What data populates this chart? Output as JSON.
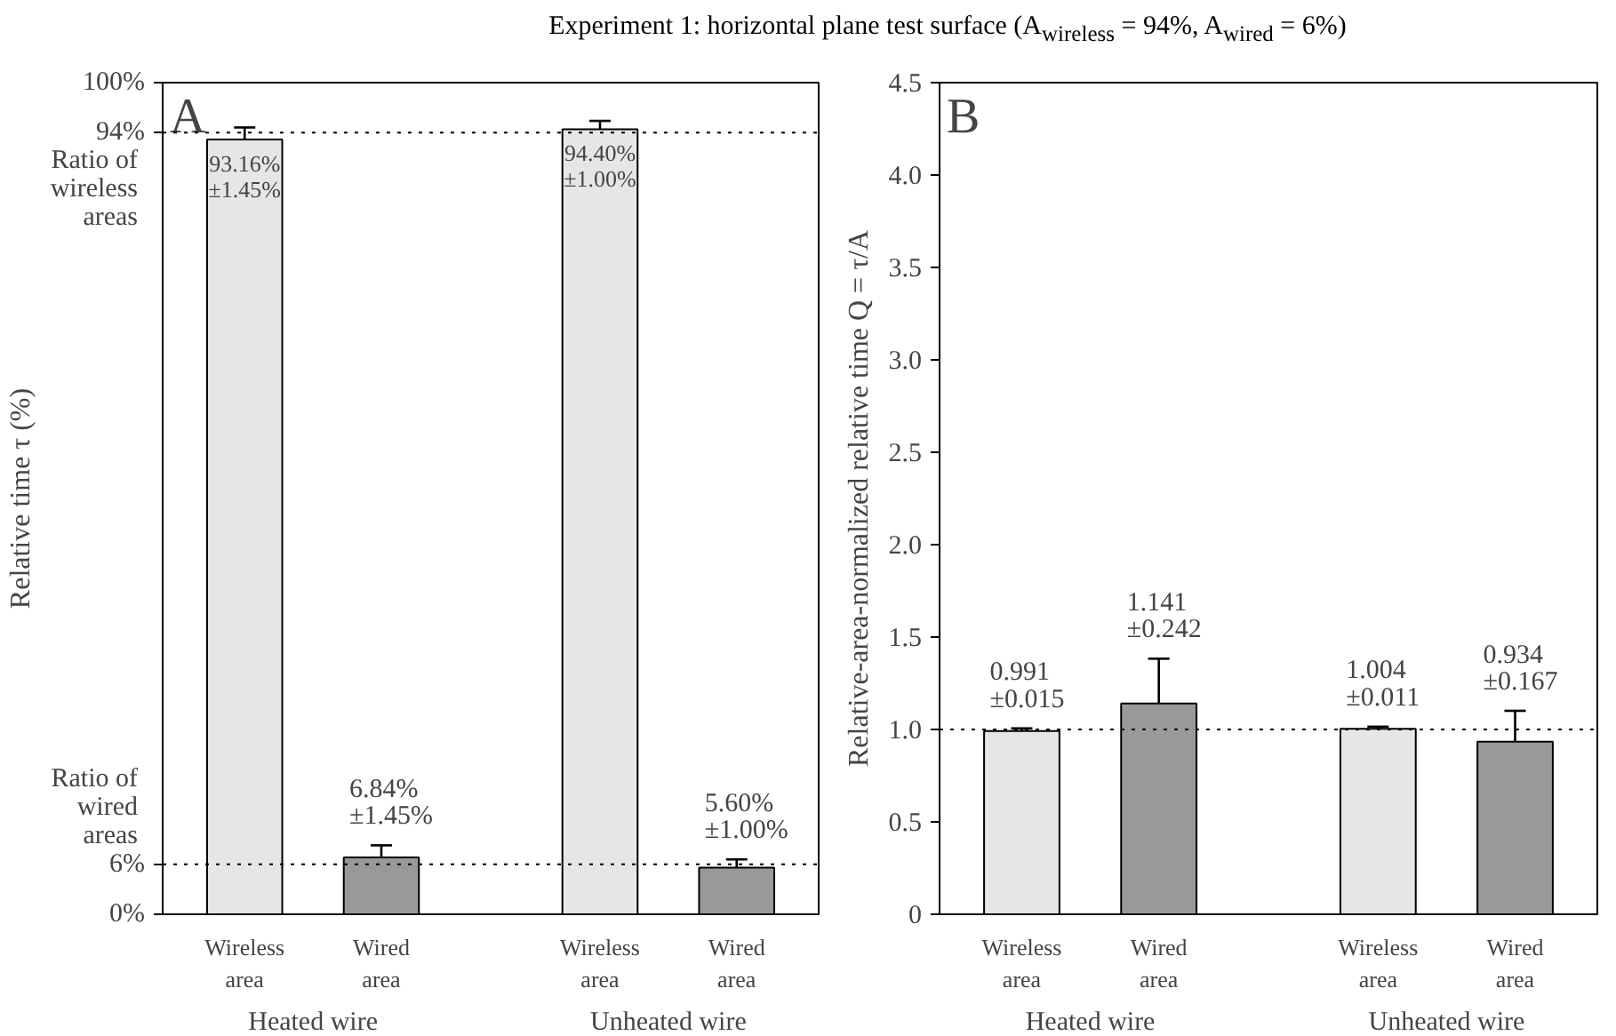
{
  "chart_data": [
    {
      "type": "bar",
      "title": "Experiment 1: horizontal plane test surface (A$_{wireless}$ = 94%, A$_{wired}$ = 6%)",
      "ylabel": "Relative time τ (%)",
      "categories": [
        "Wireless area",
        "Wired area",
        "Wireless area",
        "Wired area"
      ],
      "values": [
        93.16,
        6.84,
        94.4,
        5.6
      ],
      "errors": [
        1.45,
        1.45,
        1.0,
        1.0
      ],
      "colors": [
        "#e6e6e6",
        "#999999",
        "#e6e6e6",
        "#999999"
      ],
      "value_labels": [
        "93.16%\n±1.45%",
        "6.84%\n±1.45%",
        "94.40%\n±1.00%",
        "5.60%\n±1.00%"
      ],
      "ylim": [
        0,
        100
      ],
      "yticks": [
        {
          "value": 0,
          "label": "0%"
        },
        {
          "value": 6,
          "label": "6%"
        },
        {
          "value": 94,
          "label": "94%"
        },
        {
          "value": 100,
          "label": "100%"
        }
      ],
      "ref_lines": [
        {
          "axis": "y",
          "value": 94,
          "label": "Ratio of\nwireless\nareas",
          "line_style": "dotted"
        },
        {
          "axis": "y",
          "value": 6,
          "label": "Ratio of\nwired\nareas",
          "line_style": "dotted"
        }
      ],
      "annotations": [
        "A",
        "Heated wire",
        "Unheated wire"
      ],
      "grid": false
    },
    {
      "type": "bar",
      "ylabel": "Relative-area-normalized relative time Q = τ/A",
      "categories": [
        "Wireless area",
        "Wired area",
        "Wireless area",
        "Wired area"
      ],
      "values": [
        0.991,
        1.141,
        1.004,
        0.934
      ],
      "errors": [
        0.015,
        0.242,
        0.011,
        0.167
      ],
      "colors": [
        "#e6e6e6",
        "#999999",
        "#e6e6e6",
        "#999999"
      ],
      "value_labels": [
        "0.991\n±0.015",
        "1.141\n±0.242",
        "1.004\n±0.011",
        "0.934\n±0.167"
      ],
      "ylim": [
        0,
        4.5
      ],
      "yticks": [
        0,
        {
          "value": 0.5,
          "label": "0.5"
        },
        {
          "value": 1,
          "label": "1.0"
        },
        {
          "value": 1.5,
          "label": "1.5"
        },
        {
          "value": 2,
          "label": "2.0"
        },
        {
          "value": 2.5,
          "label": "2.5"
        },
        {
          "value": 3,
          "label": "3.0"
        },
        {
          "value": 3.5,
          "label": "3.5"
        },
        {
          "value": 4,
          "label": "4.0"
        },
        {
          "value": 4.5,
          "label": "4.5"
        }
      ],
      "ref_lines": [
        {
          "axis": "y",
          "value": 1,
          "line_style": "dotted"
        }
      ],
      "annotations": [
        "B",
        "Heated wire",
        "Unheated wire"
      ],
      "grid": false
    }
  ]
}
